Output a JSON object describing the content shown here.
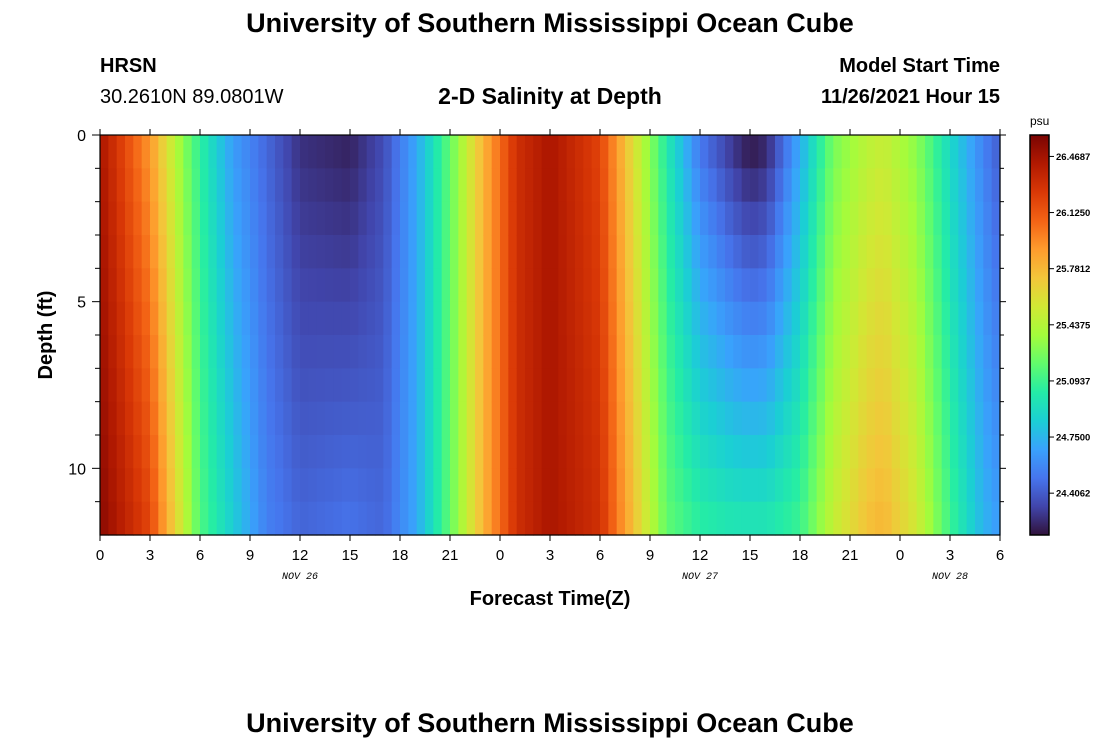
{
  "header": {
    "title": "University of Southern Mississippi Ocean Cube",
    "station": "HRSN",
    "coords": "30.2610N  89.0801W",
    "subtitle": "2-D Salinity at Depth",
    "model_label": "Model Start Time",
    "model_time": "11/26/2021 Hour 15"
  },
  "footer": {
    "title": "University of Southern Mississippi Ocean Cube"
  },
  "chart_data": {
    "type": "heatmap",
    "xlabel": "Forecast Time(Z)",
    "ylabel": "Depth (ft)",
    "x_tick_labels": [
      "0",
      "3",
      "6",
      "9",
      "12",
      "15",
      "18",
      "21",
      "0",
      "3",
      "6",
      "9",
      "12",
      "15",
      "18",
      "21",
      "0",
      "3",
      "6"
    ],
    "x_hours": [
      0,
      3,
      6,
      9,
      12,
      15,
      18,
      21,
      24,
      27,
      30,
      33,
      36,
      39,
      42,
      45,
      48,
      51,
      54
    ],
    "xlim": [
      0,
      54
    ],
    "date_labels": [
      {
        "label": "NOV 26",
        "hour": 12
      },
      {
        "label": "NOV 27",
        "hour": 36
      },
      {
        "label": "NOV 28",
        "hour": 51
      }
    ],
    "y_tick_labels": [
      "0",
      "5",
      "10"
    ],
    "y_tick_values": [
      0,
      5,
      10
    ],
    "ylim": [
      0,
      12
    ],
    "y_minor_ticks": [
      1,
      2,
      3,
      4,
      6,
      7,
      8,
      9,
      11
    ],
    "colorbar": {
      "unit": "psu",
      "tick_labels": [
        "26.4687",
        "26.1250",
        "25.7812",
        "25.4375",
        "25.0937",
        "24.7500",
        "24.4062"
      ],
      "tick_values": [
        26.4687,
        26.125,
        25.7812,
        25.4375,
        25.0937,
        24.75,
        24.4062
      ],
      "range": [
        24.15,
        26.6
      ],
      "colors": [
        "#30123b",
        "#4145ab",
        "#4675ed",
        "#39a2fc",
        "#1bcfd4",
        "#24eca6",
        "#61fc6c",
        "#a4fc3b",
        "#d1e834",
        "#f3c63a",
        "#fe9b2d",
        "#f36315",
        "#d93806",
        "#b11901",
        "#7a0403"
      ]
    },
    "time_keyframes": [
      {
        "hour": 0,
        "surface": 26.45,
        "bottom": 26.55
      },
      {
        "hour": 3,
        "surface": 25.9,
        "bottom": 26.2
      },
      {
        "hour": 5,
        "surface": 25.3,
        "bottom": 25.5
      },
      {
        "hour": 6,
        "surface": 25.05,
        "bottom": 25.15
      },
      {
        "hour": 8,
        "surface": 24.65,
        "bottom": 24.85
      },
      {
        "hour": 10,
        "surface": 24.45,
        "bottom": 24.55
      },
      {
        "hour": 12,
        "surface": 24.25,
        "bottom": 24.45
      },
      {
        "hour": 15,
        "surface": 24.2,
        "bottom": 24.5
      },
      {
        "hour": 17,
        "surface": 24.35,
        "bottom": 24.45
      },
      {
        "hour": 19,
        "surface": 24.7,
        "bottom": 24.7
      },
      {
        "hour": 21,
        "surface": 25.2,
        "bottom": 25.2
      },
      {
        "hour": 23,
        "surface": 25.8,
        "bottom": 25.8
      },
      {
        "hour": 25,
        "surface": 26.3,
        "bottom": 26.3
      },
      {
        "hour": 27,
        "surface": 26.45,
        "bottom": 26.45
      },
      {
        "hour": 30,
        "surface": 26.2,
        "bottom": 26.3
      },
      {
        "hour": 32,
        "surface": 25.6,
        "bottom": 25.75
      },
      {
        "hour": 34,
        "surface": 25.0,
        "bottom": 25.2
      },
      {
        "hour": 36,
        "surface": 24.5,
        "bottom": 25.05
      },
      {
        "hour": 38,
        "surface": 24.25,
        "bottom": 25.0
      },
      {
        "hour": 39,
        "surface": 24.15,
        "bottom": 25.0
      },
      {
        "hour": 40,
        "surface": 24.2,
        "bottom": 25.0
      },
      {
        "hour": 42,
        "surface": 24.7,
        "bottom": 25.1
      },
      {
        "hour": 44,
        "surface": 25.25,
        "bottom": 25.5
      },
      {
        "hour": 46,
        "surface": 25.45,
        "bottom": 25.75
      },
      {
        "hour": 47,
        "surface": 25.5,
        "bottom": 25.8
      },
      {
        "hour": 49,
        "surface": 25.3,
        "bottom": 25.55
      },
      {
        "hour": 51,
        "surface": 24.9,
        "bottom": 25.1
      },
      {
        "hour": 53,
        "surface": 24.55,
        "bottom": 24.75
      },
      {
        "hour": 54,
        "surface": 24.4,
        "bottom": 24.65
      }
    ]
  }
}
